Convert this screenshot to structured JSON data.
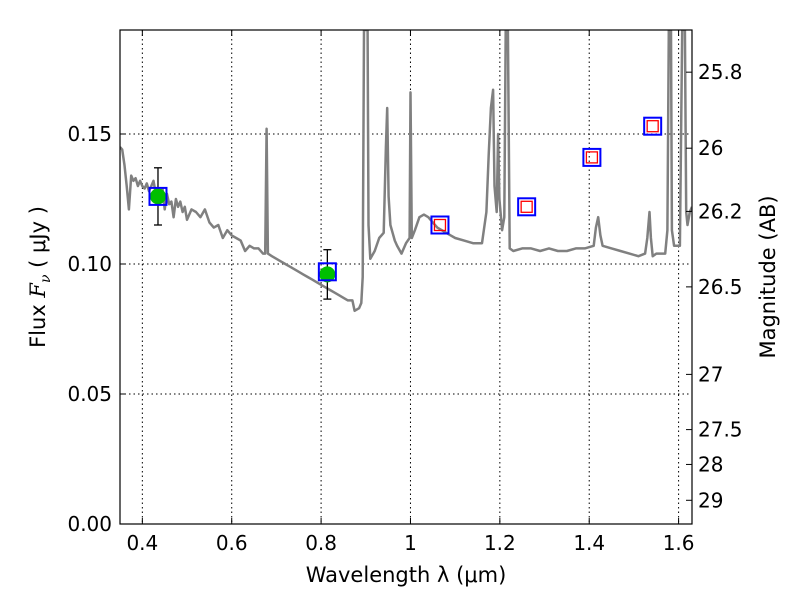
{
  "chart_data": {
    "type": "line",
    "xlabel": "Wavelength  λ (μm)",
    "ylabel": "Flux  F_ν  ( μJy )",
    "ylabel_parts": {
      "prefix": "Flux  ",
      "symbol": "F",
      "subscript": "ν",
      "suffix": "  ( μJy )"
    },
    "y2label": "Magnitude (AB)",
    "xlim": [
      0.35,
      1.63
    ],
    "ylim": [
      0.0,
      0.19
    ],
    "grid": true,
    "x_ticks": [
      {
        "value": 0.4,
        "label": "0.4"
      },
      {
        "value": 0.6,
        "label": "0.6"
      },
      {
        "value": 0.8,
        "label": "0.8"
      },
      {
        "value": 1.0,
        "label": "1"
      },
      {
        "value": 1.2,
        "label": "1.2"
      },
      {
        "value": 1.4,
        "label": "1.4"
      },
      {
        "value": 1.6,
        "label": "1.6"
      }
    ],
    "y_ticks": [
      {
        "value": 0.0,
        "label": "0.00"
      },
      {
        "value": 0.05,
        "label": "0.05"
      },
      {
        "value": 0.1,
        "label": "0.10"
      },
      {
        "value": 0.15,
        "label": "0.15"
      }
    ],
    "mag_ticks": [
      {
        "value": 25.8,
        "label": "25.8"
      },
      {
        "value": 26.0,
        "label": "26"
      },
      {
        "value": 26.2,
        "label": "26.2"
      },
      {
        "value": 26.5,
        "label": "26.5"
      },
      {
        "value": 27.0,
        "label": "27"
      },
      {
        "value": 27.5,
        "label": "27.5"
      },
      {
        "value": 28.0,
        "label": "28"
      },
      {
        "value": 29.0,
        "label": "29"
      }
    ],
    "series": [
      {
        "kind": "template_spectrum",
        "color": "#808080",
        "points": [
          [
            0.35,
            0.145
          ],
          [
            0.355,
            0.144
          ],
          [
            0.36,
            0.138
          ],
          [
            0.365,
            0.13
          ],
          [
            0.37,
            0.121
          ],
          [
            0.375,
            0.134
          ],
          [
            0.38,
            0.132
          ],
          [
            0.385,
            0.133
          ],
          [
            0.39,
            0.13
          ],
          [
            0.395,
            0.132
          ],
          [
            0.4,
            0.13
          ],
          [
            0.405,
            0.129
          ],
          [
            0.41,
            0.131
          ],
          [
            0.415,
            0.128
          ],
          [
            0.42,
            0.13
          ],
          [
            0.425,
            0.132
          ],
          [
            0.43,
            0.127
          ],
          [
            0.435,
            0.126
          ],
          [
            0.44,
            0.125
          ],
          [
            0.445,
            0.129
          ],
          [
            0.45,
            0.121
          ],
          [
            0.455,
            0.127
          ],
          [
            0.46,
            0.123
          ],
          [
            0.465,
            0.124
          ],
          [
            0.47,
            0.118
          ],
          [
            0.475,
            0.125
          ],
          [
            0.48,
            0.122
          ],
          [
            0.485,
            0.124
          ],
          [
            0.49,
            0.12
          ],
          [
            0.495,
            0.122
          ],
          [
            0.5,
            0.117
          ],
          [
            0.51,
            0.121
          ],
          [
            0.52,
            0.12
          ],
          [
            0.53,
            0.118
          ],
          [
            0.54,
            0.121
          ],
          [
            0.55,
            0.116
          ],
          [
            0.56,
            0.114
          ],
          [
            0.57,
            0.115
          ],
          [
            0.58,
            0.11
          ],
          [
            0.59,
            0.113
          ],
          [
            0.6,
            0.111
          ],
          [
            0.61,
            0.11
          ],
          [
            0.62,
            0.109
          ],
          [
            0.63,
            0.105
          ],
          [
            0.64,
            0.107
          ],
          [
            0.65,
            0.106
          ],
          [
            0.66,
            0.106
          ],
          [
            0.67,
            0.104
          ],
          [
            0.675,
            0.104
          ],
          [
            0.678,
            0.152
          ],
          [
            0.681,
            0.104
          ],
          [
            0.69,
            0.103
          ],
          [
            0.7,
            0.102
          ],
          [
            0.71,
            0.101
          ],
          [
            0.72,
            0.1
          ],
          [
            0.73,
            0.099
          ],
          [
            0.74,
            0.098
          ],
          [
            0.75,
            0.097
          ],
          [
            0.76,
            0.096
          ],
          [
            0.77,
            0.095
          ],
          [
            0.78,
            0.094
          ],
          [
            0.79,
            0.093
          ],
          [
            0.8,
            0.092
          ],
          [
            0.81,
            0.091
          ],
          [
            0.82,
            0.09
          ],
          [
            0.83,
            0.089
          ],
          [
            0.84,
            0.088
          ],
          [
            0.85,
            0.087
          ],
          [
            0.86,
            0.086
          ],
          [
            0.87,
            0.086
          ],
          [
            0.875,
            0.082
          ],
          [
            0.885,
            0.083
          ],
          [
            0.89,
            0.085
          ],
          [
            0.893,
            0.095
          ],
          [
            0.896,
            0.19
          ],
          [
            0.904,
            0.19
          ],
          [
            0.906,
            0.115
          ],
          [
            0.91,
            0.102
          ],
          [
            0.92,
            0.105
          ],
          [
            0.93,
            0.11
          ],
          [
            0.94,
            0.112
          ],
          [
            0.945,
            0.145
          ],
          [
            0.948,
            0.16
          ],
          [
            0.951,
            0.126
          ],
          [
            0.955,
            0.115
          ],
          [
            0.96,
            0.112
          ],
          [
            0.965,
            0.109
          ],
          [
            0.97,
            0.107
          ],
          [
            0.98,
            0.104
          ],
          [
            0.99,
            0.108
          ],
          [
            0.998,
            0.11
          ],
          [
            1.0,
            0.166
          ],
          [
            1.003,
            0.11
          ],
          [
            1.01,
            0.113
          ],
          [
            1.02,
            0.118
          ],
          [
            1.03,
            0.119
          ],
          [
            1.04,
            0.118
          ],
          [
            1.05,
            0.116
          ],
          [
            1.06,
            0.114
          ],
          [
            1.07,
            0.113
          ],
          [
            1.08,
            0.112
          ],
          [
            1.09,
            0.111
          ],
          [
            1.1,
            0.11
          ],
          [
            1.12,
            0.109
          ],
          [
            1.14,
            0.108
          ],
          [
            1.16,
            0.108
          ],
          [
            1.17,
            0.12
          ],
          [
            1.175,
            0.142
          ],
          [
            1.18,
            0.16
          ],
          [
            1.185,
            0.167
          ],
          [
            1.188,
            0.13
          ],
          [
            1.193,
            0.12
          ],
          [
            1.196,
            0.15
          ],
          [
            1.199,
            0.125
          ],
          [
            1.205,
            0.113
          ],
          [
            1.21,
            0.118
          ],
          [
            1.213,
            0.19
          ],
          [
            1.218,
            0.19
          ],
          [
            1.222,
            0.106
          ],
          [
            1.23,
            0.105
          ],
          [
            1.25,
            0.106
          ],
          [
            1.27,
            0.106
          ],
          [
            1.29,
            0.105
          ],
          [
            1.31,
            0.106
          ],
          [
            1.33,
            0.105
          ],
          [
            1.35,
            0.105
          ],
          [
            1.37,
            0.106
          ],
          [
            1.39,
            0.106
          ],
          [
            1.41,
            0.107
          ],
          [
            1.415,
            0.114
          ],
          [
            1.42,
            0.118
          ],
          [
            1.425,
            0.111
          ],
          [
            1.43,
            0.107
          ],
          [
            1.45,
            0.106
          ],
          [
            1.47,
            0.105
          ],
          [
            1.49,
            0.104
          ],
          [
            1.51,
            0.103
          ],
          [
            1.525,
            0.104
          ],
          [
            1.53,
            0.11
          ],
          [
            1.535,
            0.12
          ],
          [
            1.538,
            0.11
          ],
          [
            1.542,
            0.103
          ],
          [
            1.55,
            0.104
          ],
          [
            1.56,
            0.104
          ],
          [
            1.57,
            0.104
          ],
          [
            1.575,
            0.113
          ],
          [
            1.578,
            0.19
          ],
          [
            1.583,
            0.19
          ],
          [
            1.585,
            0.113
          ],
          [
            1.59,
            0.107
          ],
          [
            1.6,
            0.107
          ],
          [
            1.603,
            0.107
          ],
          [
            1.608,
            0.19
          ],
          [
            1.614,
            0.19
          ],
          [
            1.617,
            0.12
          ],
          [
            1.62,
            0.115
          ],
          [
            1.625,
            0.12
          ],
          [
            1.63,
            0.122
          ]
        ]
      },
      {
        "kind": "observed_photometry",
        "marker": "circle",
        "color": "#00bf00",
        "points": [
          {
            "x": 0.435,
            "y": 0.126,
            "yerr": 0.011
          },
          {
            "x": 0.814,
            "y": 0.096,
            "yerr": 0.0095
          }
        ]
      },
      {
        "kind": "model_photometry",
        "marker": "square",
        "color": "#0000ff",
        "points": [
          {
            "x": 0.435,
            "y": 0.126
          },
          {
            "x": 0.814,
            "y": 0.097
          },
          {
            "x": 1.066,
            "y": 0.115
          },
          {
            "x": 1.26,
            "y": 0.122
          },
          {
            "x": 1.406,
            "y": 0.141
          },
          {
            "x": 1.542,
            "y": 0.153
          }
        ]
      },
      {
        "kind": "upper_limits",
        "marker": "square",
        "color": "#ff0000",
        "points": [
          {
            "x": 1.066,
            "y": 0.115
          },
          {
            "x": 1.26,
            "y": 0.122
          },
          {
            "x": 1.406,
            "y": 0.141
          },
          {
            "x": 1.542,
            "y": 0.153
          }
        ]
      }
    ]
  }
}
